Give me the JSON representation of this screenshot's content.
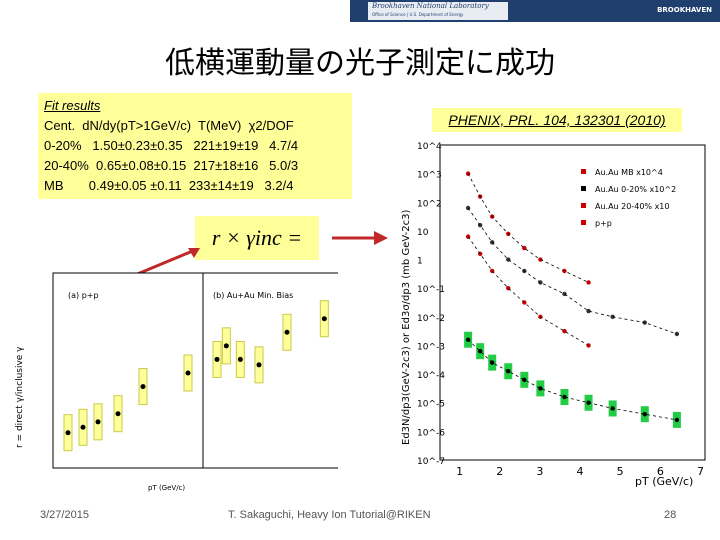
{
  "banner": {
    "lab_name": "Brookhaven National Laboratory",
    "lab_sub": "Office of Science | U.S. Department of Energy",
    "right_logo": "BROOKHAVEN"
  },
  "slide": {
    "title": "低横運動量の光子測定に成功",
    "fit_box": {
      "heading": "Fit results",
      "header": "Cent.  dN/dy(pT>1GeV/c)  T(MeV)  χ2/DOF",
      "rows": [
        "0-20%   1.50±0.23±0.35   221±19±19   4.7/4",
        "20-40%  0.65±0.08±0.15  217±18±16   5.0/3",
        "MB       0.49±0.05 ±0.11  233±14±19   3.2/4"
      ]
    },
    "formula": "r × γinc = γdir",
    "reference": "PHENIX, PRL. 104, 132301 (2010)"
  },
  "footer": {
    "date": "3/27/2015",
    "caption": "T. Sakaguchi, Heavy Ion Tutorial@RIKEN",
    "page": "28"
  },
  "colors": {
    "highlight": "#ffff99",
    "arrow": "#c0282a",
    "banner": "#1f3f6e",
    "green_box": "#22cc44"
  },
  "chart_data": [
    {
      "type": "scatter",
      "ylabel": "r = direct γ/inclusive γ",
      "xlabel": "pT (GeV/c)",
      "panels": [
        {
          "label": "(a) p+p",
          "x": [
            1.1,
            1.4,
            1.7,
            2.1,
            2.6,
            3.5
          ],
          "y": [
            1.03,
            1.05,
            1.07,
            1.1,
            1.2,
            1.25
          ]
        },
        {
          "label": "(b) Au+Au Min. Bias",
          "x": [
            1.1,
            1.3,
            1.6,
            2.0,
            2.6,
            3.4
          ],
          "y": [
            1.3,
            1.35,
            1.3,
            1.28,
            1.4,
            1.45
          ]
        }
      ]
    },
    {
      "type": "scatter",
      "log_y": true,
      "xlabel": "pT (GeV/c)",
      "ylabel": "Ed3N/dp3(GeV-2c3) or Ed3σ/dp3 (mb GeV-2c3)",
      "x_ticks": [
        "1",
        "2",
        "3",
        "4",
        "5",
        "6",
        "7"
      ],
      "y_ticks": [
        "10^4",
        "10^3",
        "10^2",
        "10",
        "1",
        "10^-1",
        "10^-2",
        "10^-3",
        "10^-4",
        "10^-5",
        "10^-6",
        "10^-7"
      ],
      "series": [
        {
          "name": "Au.Au MB x10^4",
          "x": [
            1.2,
            1.5,
            1.8,
            2.2,
            2.6,
            3.0,
            3.6,
            4.2
          ],
          "y": [
            3.0,
            2.2,
            1.5,
            0.9,
            0.4,
            0.0,
            -0.4,
            -0.8
          ]
        },
        {
          "name": "Au.Au 0-20% x10^2",
          "x": [
            1.2,
            1.5,
            1.8,
            2.2,
            2.6,
            3.0,
            3.6,
            4.2,
            4.8,
            5.6,
            6.4
          ],
          "y": [
            1.8,
            1.2,
            0.6,
            0.0,
            -0.4,
            -0.8,
            -1.2,
            -1.8,
            -2.0,
            -2.2,
            -2.6
          ]
        },
        {
          "name": "Au.Au 20-40% x10",
          "x": [
            1.2,
            1.5,
            1.8,
            2.2,
            2.6,
            3.0,
            3.6,
            4.2
          ],
          "y": [
            0.8,
            0.2,
            -0.4,
            -1.0,
            -1.5,
            -2.0,
            -2.5,
            -3.0
          ]
        },
        {
          "name": "p+p",
          "x": [
            1.2,
            1.5,
            1.8,
            2.2,
            2.6,
            3.0,
            3.6,
            4.2,
            4.8,
            5.6,
            6.4
          ],
          "y": [
            -2.8,
            -3.2,
            -3.6,
            -3.9,
            -4.2,
            -4.5,
            -4.8,
            -5.0,
            -5.2,
            -5.4,
            -5.6
          ]
        }
      ]
    }
  ]
}
